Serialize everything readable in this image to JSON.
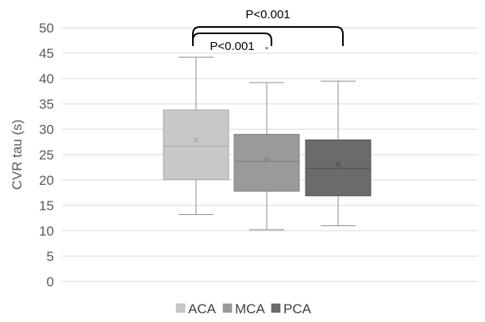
{
  "chart_data": {
    "type": "boxplot",
    "title": "",
    "xlabel": "",
    "ylabel": "CVR tau (s)",
    "ylim": [
      0,
      50
    ],
    "yticks": [
      0,
      5,
      10,
      15,
      20,
      25,
      30,
      35,
      40,
      45,
      50
    ],
    "grid": true,
    "legend_position": "bottom",
    "series": [
      {
        "name": "ACA",
        "color": "#c8c8c8",
        "median_color": "#a6a6a6",
        "min": 13.2,
        "q1": 20.1,
        "median": 26.7,
        "mean": 27.9,
        "q3": 33.8,
        "max": 44.2,
        "outliers": []
      },
      {
        "name": "MCA",
        "color": "#9a9a9a",
        "median_color": "#7f7f7f",
        "min": 10.2,
        "q1": 17.8,
        "median": 23.7,
        "mean": 24.0,
        "q3": 29.0,
        "max": 39.2,
        "outliers": [
          46.0
        ]
      },
      {
        "name": "PCA",
        "color": "#6b6b6b",
        "median_color": "#4d4d4d",
        "min": 11.0,
        "q1": 16.9,
        "median": 22.3,
        "mean": 23.1,
        "q3": 27.9,
        "max": 39.5,
        "outliers": []
      }
    ],
    "annotations": [
      {
        "label": "P<0.001",
        "from": "ACA",
        "to": "MCA"
      },
      {
        "label": "P<0.001",
        "from": "ACA",
        "to": "PCA"
      }
    ]
  }
}
